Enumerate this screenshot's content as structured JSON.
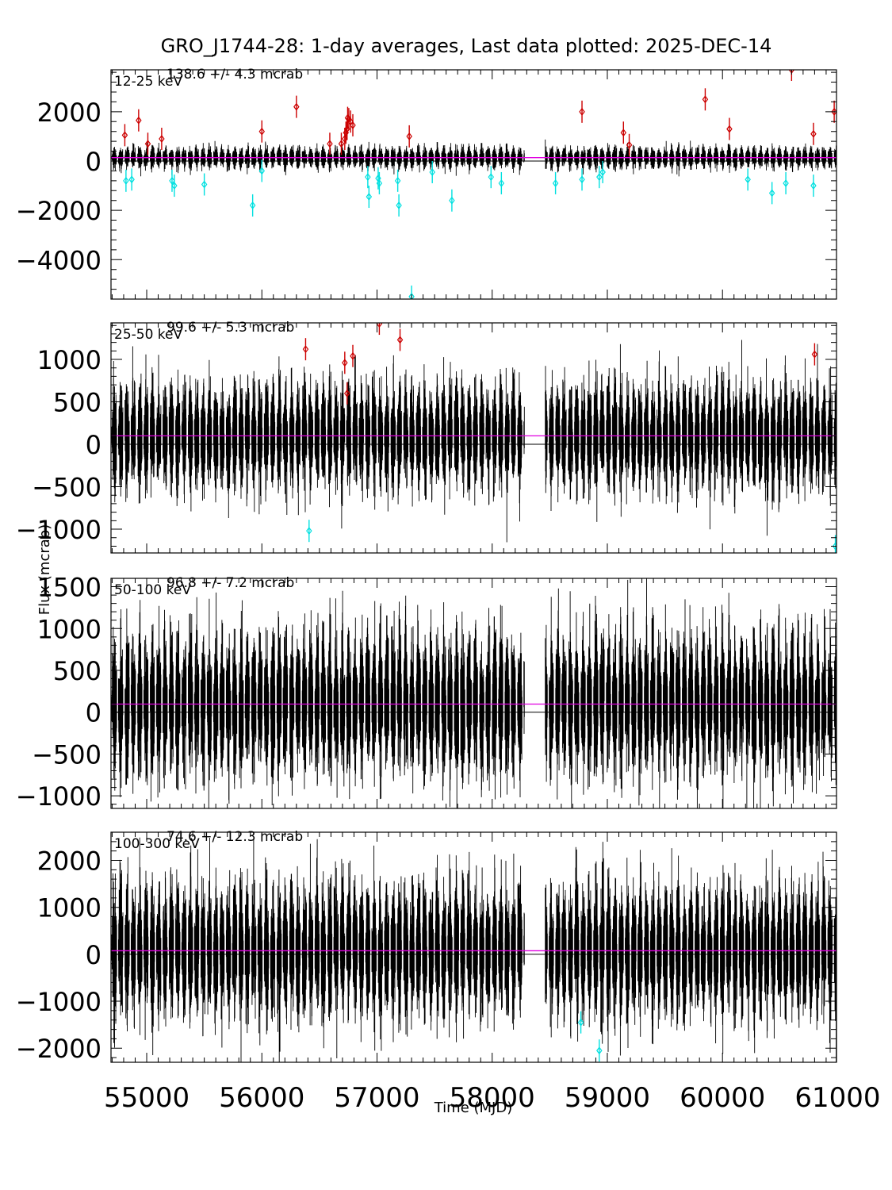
{
  "title": "GRO_J1744-28:  1-day averages,  Last data plotted: 2025-DEC-14",
  "ylabel": "Flux (mcrab)",
  "xlabel": "Time (MJD)",
  "colors": {
    "points": "#000000",
    "high_outlier": "#cc0000",
    "low_outlier": "#00e0e0",
    "mean_line": "#e000e0",
    "zero_line": "#000000"
  },
  "chart_data": [
    {
      "type": "scatter",
      "band": "12-25 keV",
      "mean_label": "138.6 +/-     4.3 mcrab",
      "mean": 138.6,
      "mean_err": 4.3,
      "noise": 320,
      "xlim": [
        54690,
        60990
      ],
      "ylim": [
        -5600,
        3700
      ],
      "yticks": [
        2000,
        0,
        -2000,
        -4000
      ],
      "high_outliers": [
        [
          54810,
          1050
        ],
        [
          54930,
          1650
        ],
        [
          55010,
          700
        ],
        [
          55130,
          900
        ],
        [
          56000,
          1200
        ],
        [
          56300,
          2200
        ],
        [
          56590,
          700
        ],
        [
          56690,
          700
        ],
        [
          56720,
          900
        ],
        [
          56730,
          1150
        ],
        [
          56740,
          1300
        ],
        [
          56745,
          1750
        ],
        [
          56755,
          1700
        ],
        [
          56770,
          1600
        ],
        [
          56790,
          1450
        ],
        [
          57280,
          1000
        ],
        [
          58780,
          2000
        ],
        [
          59140,
          1150
        ],
        [
          59190,
          650
        ],
        [
          59850,
          2500
        ],
        [
          60060,
          1300
        ],
        [
          60600,
          3700
        ],
        [
          60790,
          1100
        ],
        [
          60970,
          2000
        ]
      ],
      "low_outliers": [
        [
          54820,
          -800
        ],
        [
          54870,
          -750
        ],
        [
          55220,
          -800
        ],
        [
          55240,
          -1000
        ],
        [
          55500,
          -950
        ],
        [
          55920,
          -1800
        ],
        [
          56000,
          -400
        ],
        [
          56920,
          -650
        ],
        [
          56930,
          -1450
        ],
        [
          57010,
          -700
        ],
        [
          57020,
          -900
        ],
        [
          57180,
          -800
        ],
        [
          57190,
          -1800
        ],
        [
          57300,
          -5500
        ],
        [
          57480,
          -450
        ],
        [
          57650,
          -1600
        ],
        [
          57990,
          -650
        ],
        [
          58080,
          -900
        ],
        [
          58550,
          -900
        ],
        [
          58780,
          -750
        ],
        [
          58930,
          -650
        ],
        [
          58960,
          -450
        ],
        [
          60220,
          -750
        ],
        [
          60430,
          -1300
        ],
        [
          60550,
          -900
        ],
        [
          60790,
          -1000
        ]
      ]
    },
    {
      "type": "scatter",
      "band": "25-50 keV",
      "mean_label": "99.6 +/-     5.3 mcrab",
      "mean": 99.6,
      "mean_err": 5.3,
      "noise": 470,
      "xlim": [
        54690,
        60990
      ],
      "ylim": [
        -1280,
        1430
      ],
      "yticks": [
        1000,
        500,
        0,
        -500,
        -1000
      ],
      "high_outliers": [
        [
          56380,
          1120
        ],
        [
          56720,
          960
        ],
        [
          56740,
          600
        ],
        [
          56790,
          1040
        ],
        [
          57020,
          1420
        ],
        [
          57200,
          1230
        ],
        [
          60800,
          1060
        ]
      ],
      "low_outliers": [
        [
          56410,
          -1020
        ],
        [
          60980,
          -1200
        ]
      ]
    },
    {
      "type": "scatter",
      "band": "50-100 keV",
      "mean_label": "96.8 +/-     7.2 mcrab",
      "mean": 96.8,
      "mean_err": 7.2,
      "noise": 640,
      "xlim": [
        54690,
        60990
      ],
      "ylim": [
        -1150,
        1600
      ],
      "yticks": [
        1500,
        1000,
        500,
        0,
        -500,
        -1000
      ],
      "high_outliers": [],
      "low_outliers": []
    },
    {
      "type": "scatter",
      "band": "100-300 keV",
      "mean_label": "74.6 +/-    12.3 mcrab",
      "mean": 74.6,
      "mean_err": 12.3,
      "noise": 1050,
      "xlim": [
        54690,
        60990
      ],
      "ylim": [
        -2300,
        2600
      ],
      "yticks": [
        2000,
        1000,
        0,
        -1000,
        -2000
      ],
      "high_outliers": [],
      "low_outliers": [
        [
          58770,
          -1450
        ],
        [
          58930,
          -2050
        ]
      ]
    }
  ],
  "xticks": [
    55000,
    56000,
    57000,
    58000,
    59000,
    60000,
    61000
  ],
  "data_gap_mjd": [
    58280,
    58460
  ]
}
